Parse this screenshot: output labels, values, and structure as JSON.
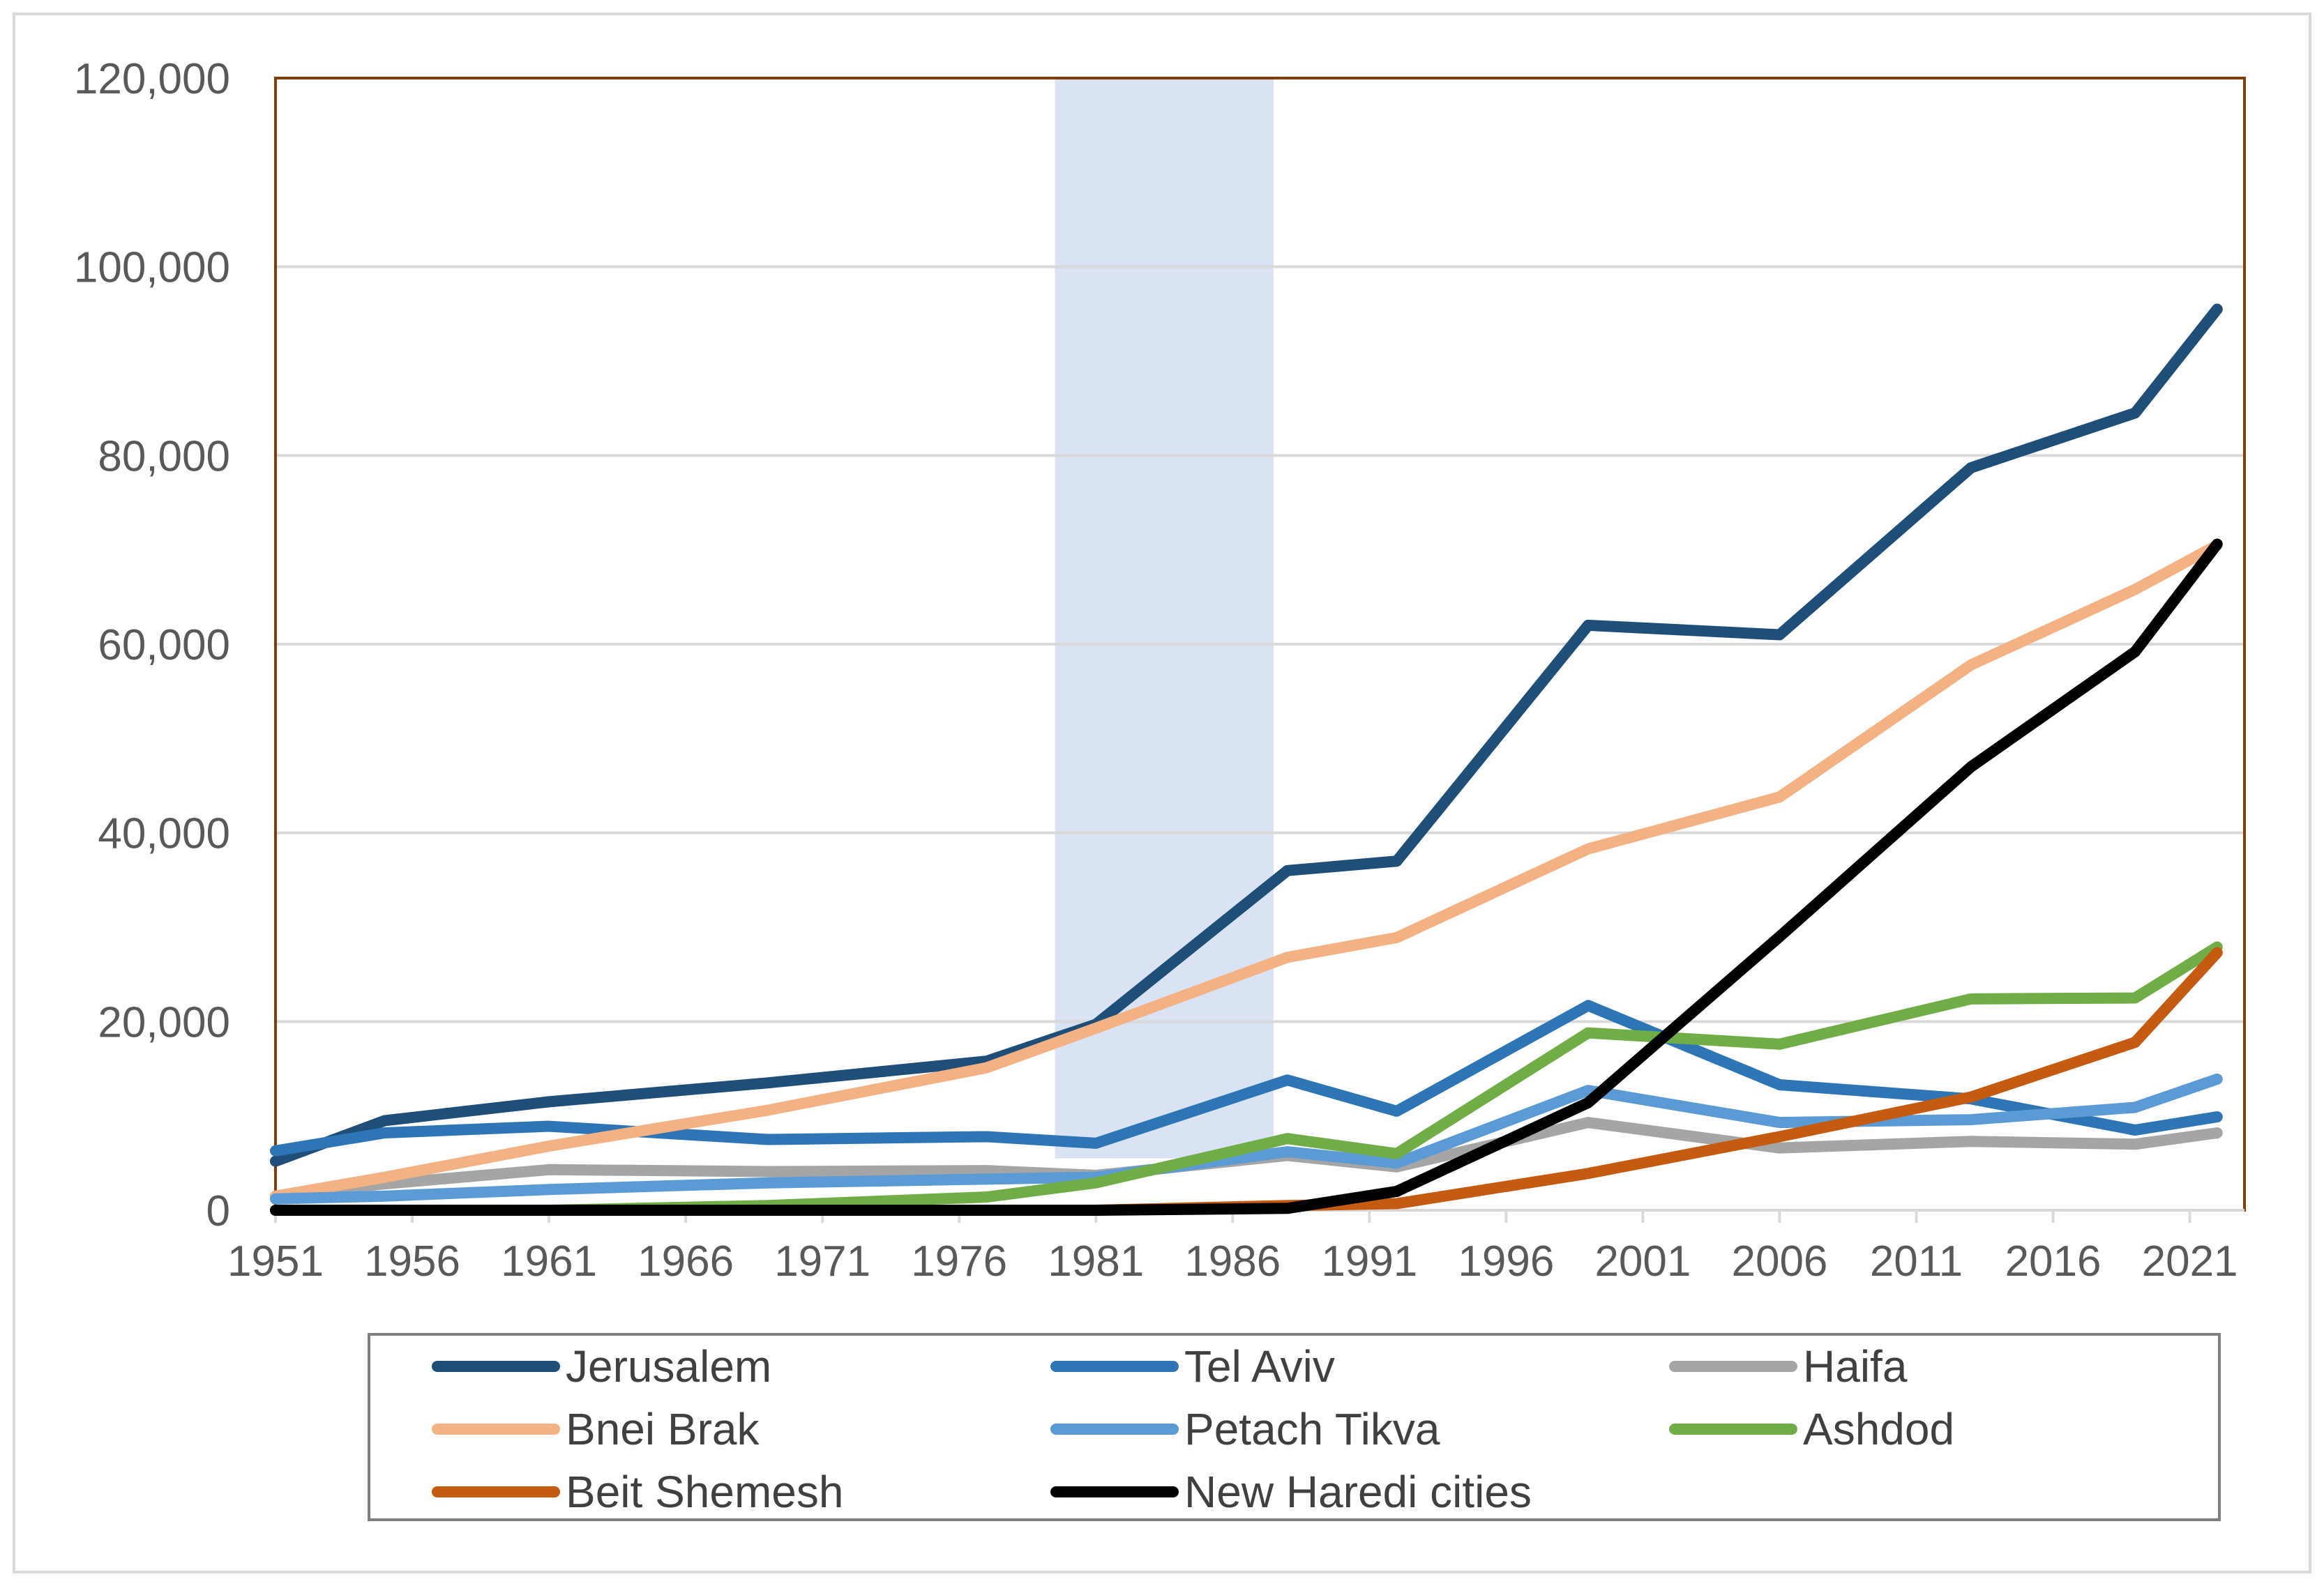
{
  "chart_data": {
    "type": "line",
    "title": "",
    "xlabel": "",
    "ylabel": "",
    "x_range": [
      1951,
      2023
    ],
    "ylim": [
      0,
      120000
    ],
    "y_ticks": [
      0,
      20000,
      40000,
      60000,
      80000,
      100000,
      120000
    ],
    "y_tick_labels": [
      "0",
      "20,000",
      "40,000",
      "60,000",
      "80,000",
      "100,000",
      "120,000"
    ],
    "x_ticks": [
      1951,
      1956,
      1961,
      1966,
      1971,
      1976,
      1981,
      1986,
      1991,
      1996,
      2001,
      2006,
      2011,
      2016,
      2021
    ],
    "x_tick_labels": [
      "1951",
      "1956",
      "1961",
      "1966",
      "1971",
      "1976",
      "1981",
      "1986",
      "1991",
      "1996",
      "2001",
      "2006",
      "2011",
      "2016",
      "2021"
    ],
    "grid": true,
    "legend_position": "bottom",
    "highlight_band": {
      "x_start": 1979.5,
      "x_end": 1987.5,
      "y_start": 5500,
      "y_end": 120000,
      "color": "#b4c7e7"
    },
    "series": [
      {
        "name": "Jerusalem",
        "color": "#1f4e79",
        "x": [
          1951,
          1955,
          1961,
          1969,
          1977,
          1981,
          1988,
          1992,
          1999,
          2006,
          2013,
          2019,
          2022
        ],
        "values": [
          5200,
          9500,
          11500,
          13500,
          15800,
          19700,
          36000,
          37000,
          62000,
          61000,
          78700,
          84500,
          95500
        ]
      },
      {
        "name": "Tel Aviv",
        "color": "#2e75b6",
        "x": [
          1951,
          1955,
          1961,
          1969,
          1977,
          1981,
          1988,
          1992,
          1999,
          2006,
          2013,
          2019,
          2022
        ],
        "values": [
          6300,
          8200,
          8900,
          7500,
          7800,
          7100,
          13800,
          10500,
          21700,
          13300,
          11800,
          8500,
          9900
        ]
      },
      {
        "name": "Haifa",
        "color": "#a5a5a5",
        "x": [
          1951,
          1955,
          1961,
          1969,
          1977,
          1981,
          1988,
          1992,
          1999,
          2006,
          2013,
          2019,
          2022
        ],
        "values": [
          1500,
          2800,
          4300,
          4100,
          4200,
          3700,
          5800,
          4600,
          9300,
          6600,
          7300,
          7000,
          8200
        ]
      },
      {
        "name": "Bnei Brak",
        "color": "#f4b183",
        "x": [
          1951,
          1955,
          1961,
          1969,
          1977,
          1981,
          1988,
          1992,
          1999,
          2006,
          2013,
          2019,
          2022
        ],
        "values": [
          1500,
          3500,
          6800,
          10600,
          15100,
          19300,
          26800,
          28900,
          38300,
          43800,
          57800,
          65800,
          70500
        ]
      },
      {
        "name": "Petach Tikva",
        "color": "#5b9bd5",
        "x": [
          1951,
          1955,
          1961,
          1969,
          1977,
          1981,
          1988,
          1992,
          1999,
          2006,
          2013,
          2019,
          2022
        ],
        "values": [
          1200,
          1500,
          2200,
          2900,
          3300,
          3500,
          6200,
          5000,
          12700,
          9300,
          9600,
          10900,
          13900
        ]
      },
      {
        "name": "Ashdod",
        "color": "#70ad47",
        "x": [
          1951,
          1955,
          1961,
          1969,
          1977,
          1981,
          1988,
          1992,
          1999,
          2006,
          2013,
          2019,
          2022
        ],
        "values": [
          0,
          0,
          0,
          500,
          1400,
          2900,
          7600,
          6000,
          18800,
          17600,
          22400,
          22500,
          27900
        ]
      },
      {
        "name": "Beit Shemesh",
        "color": "#c55a11",
        "x": [
          1951,
          1955,
          1961,
          1969,
          1977,
          1981,
          1988,
          1992,
          1999,
          2006,
          2013,
          2019,
          2022
        ],
        "values": [
          0,
          0,
          0,
          0,
          0,
          0,
          500,
          700,
          3900,
          7800,
          12000,
          17800,
          27300
        ]
      },
      {
        "name": "New Haredi cities",
        "color": "#000000",
        "x": [
          1951,
          1955,
          1961,
          1969,
          1977,
          1981,
          1988,
          1992,
          1999,
          2006,
          2013,
          2019,
          2022
        ],
        "values": [
          0,
          0,
          0,
          0,
          0,
          0,
          200,
          2000,
          11400,
          29000,
          47000,
          59200,
          70600
        ]
      }
    ]
  }
}
